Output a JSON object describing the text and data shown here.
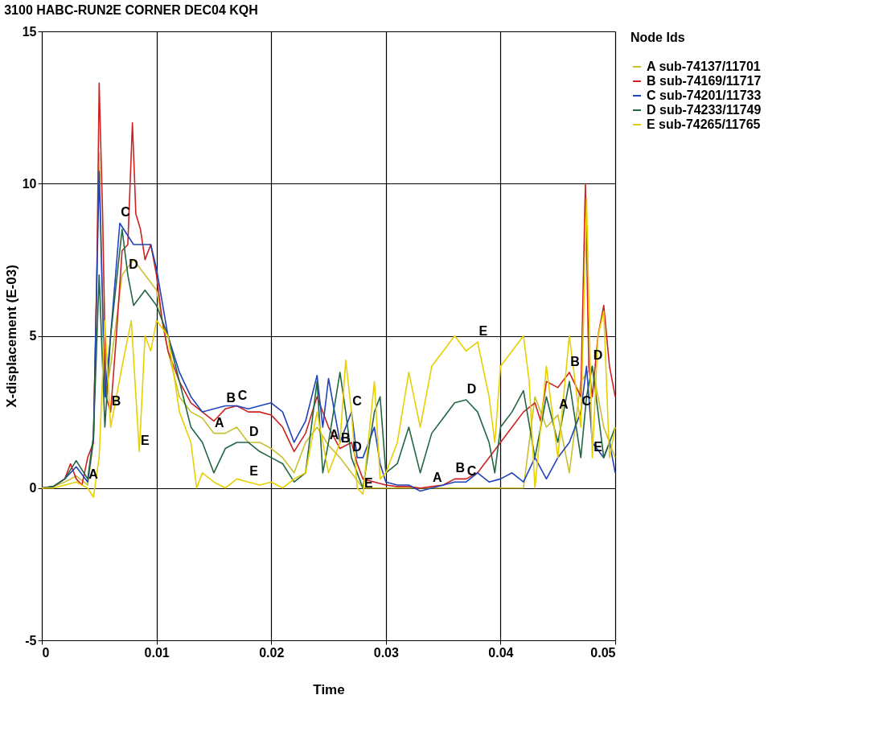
{
  "chart_data": {
    "type": "line",
    "title": "3100 HABC-RUN2E CORNER DEC04 KQH",
    "xlabel": "Time",
    "ylabel": "X-displacement (E-03)",
    "legend_title": "Node Ids",
    "legend": "right",
    "grid": true,
    "marker": "none",
    "line_style": "solid",
    "xlim": [
      0,
      0.05
    ],
    "xticks": [
      0,
      0.01,
      0.02,
      0.03,
      0.04,
      0.05
    ],
    "ylim": [
      -5,
      15
    ],
    "yticks": [
      -5,
      0,
      5,
      10,
      15
    ],
    "series": [
      {
        "name": "A sub-74137/11701",
        "color": "#c8c030",
        "x": [
          0,
          0.001,
          0.002,
          0.003,
          0.004,
          0.0045,
          0.005,
          0.0055,
          0.006,
          0.007,
          0.008,
          0.009,
          0.01,
          0.011,
          0.012,
          0.013,
          0.014,
          0.015,
          0.016,
          0.017,
          0.018,
          0.019,
          0.02,
          0.021,
          0.022,
          0.023,
          0.024,
          0.025,
          0.026,
          0.027,
          0.028,
          0.03,
          0.032,
          0.034,
          0.036,
          0.038,
          0.04,
          0.042,
          0.043,
          0.044,
          0.045,
          0.046,
          0.047,
          0.048,
          0.049,
          0.05
        ],
        "values": [
          0,
          0.05,
          0.2,
          0.4,
          0.1,
          1.5,
          11,
          3,
          4,
          7,
          7.5,
          7,
          6.5,
          4.5,
          3,
          2.5,
          2.3,
          1.8,
          1.8,
          2.0,
          1.5,
          1.5,
          1.3,
          1.0,
          0.5,
          1.5,
          2.0,
          1.4,
          1.0,
          0.5,
          0.0,
          0.0,
          0.0,
          0.0,
          0.0,
          0.0,
          0.0,
          0.0,
          3.0,
          2.0,
          2.4,
          0.5,
          3.5,
          4.0,
          2.0,
          1.0
        ]
      },
      {
        "name": "B sub-74169/11717",
        "color": "#cc2222",
        "x": [
          0,
          0.001,
          0.002,
          0.0025,
          0.003,
          0.0035,
          0.004,
          0.0045,
          0.0048,
          0.005,
          0.0053,
          0.0056,
          0.006,
          0.0065,
          0.007,
          0.0075,
          0.0079,
          0.0082,
          0.0086,
          0.009,
          0.0095,
          0.01,
          0.0105,
          0.011,
          0.012,
          0.013,
          0.014,
          0.015,
          0.016,
          0.017,
          0.018,
          0.019,
          0.02,
          0.021,
          0.022,
          0.023,
          0.024,
          0.025,
          0.026,
          0.027,
          0.0275,
          0.028,
          0.029,
          0.03,
          0.031,
          0.032,
          0.033,
          0.034,
          0.035,
          0.036,
          0.037,
          0.038,
          0.039,
          0.04,
          0.041,
          0.042,
          0.043,
          0.0435,
          0.044,
          0.045,
          0.046,
          0.047,
          0.0474,
          0.0477,
          0.048,
          0.0485,
          0.049,
          0.0495,
          0.05
        ],
        "values": [
          0,
          0.05,
          0.3,
          0.8,
          0.3,
          0.1,
          1.0,
          1.5,
          7,
          13.3,
          9,
          3,
          2.5,
          5,
          7.8,
          8,
          12,
          9,
          8.5,
          7.5,
          8,
          7,
          5.5,
          4.5,
          3.5,
          2.8,
          2.5,
          2.2,
          2.6,
          2.7,
          2.5,
          2.5,
          2.4,
          2.0,
          1.2,
          1.8,
          3.0,
          2.0,
          1.3,
          1.5,
          0.8,
          0.3,
          0.2,
          0.1,
          0.05,
          0.05,
          0.0,
          0.05,
          0.1,
          0.3,
          0.3,
          0.5,
          1.0,
          1.5,
          2.0,
          2.5,
          2.8,
          2.2,
          3.5,
          3.3,
          3.8,
          3.0,
          10,
          4,
          3,
          5,
          6,
          4,
          3
        ]
      },
      {
        "name": "C sub-74201/11733",
        "color": "#2244bb",
        "x": [
          0,
          0.001,
          0.002,
          0.003,
          0.004,
          0.0045,
          0.005,
          0.0055,
          0.006,
          0.0068,
          0.008,
          0.009,
          0.0095,
          0.01,
          0.011,
          0.012,
          0.013,
          0.014,
          0.015,
          0.016,
          0.017,
          0.018,
          0.019,
          0.02,
          0.021,
          0.022,
          0.023,
          0.024,
          0.0245,
          0.025,
          0.026,
          0.027,
          0.0275,
          0.028,
          0.029,
          0.0295,
          0.03,
          0.031,
          0.032,
          0.033,
          0.034,
          0.035,
          0.036,
          0.037,
          0.038,
          0.039,
          0.04,
          0.041,
          0.042,
          0.043,
          0.044,
          0.045,
          0.046,
          0.047,
          0.0475,
          0.048,
          0.049,
          0.0495,
          0.05
        ],
        "values": [
          0,
          0.05,
          0.3,
          0.7,
          0.2,
          1.6,
          10.4,
          3,
          5,
          8.7,
          8,
          8,
          8,
          7.2,
          5,
          3.8,
          3,
          2.5,
          2.6,
          2.7,
          2.7,
          2.6,
          2.7,
          2.8,
          2.5,
          1.5,
          2.2,
          3.7,
          2.0,
          3.6,
          1.5,
          2.5,
          1.0,
          1.0,
          2.0,
          0.8,
          0.2,
          0.1,
          0.1,
          -0.1,
          0.0,
          0.1,
          0.2,
          0.2,
          0.5,
          0.2,
          0.3,
          0.5,
          0.2,
          1.0,
          0.3,
          1.0,
          1.5,
          2.5,
          4.0,
          1.5,
          1.0,
          1.5,
          0.5
        ]
      },
      {
        "name": "D sub-74233/11749",
        "color": "#226644",
        "x": [
          0,
          0.001,
          0.002,
          0.003,
          0.004,
          0.0045,
          0.005,
          0.0055,
          0.006,
          0.007,
          0.0075,
          0.008,
          0.009,
          0.01,
          0.011,
          0.012,
          0.013,
          0.014,
          0.015,
          0.016,
          0.017,
          0.018,
          0.019,
          0.02,
          0.021,
          0.022,
          0.023,
          0.024,
          0.0245,
          0.025,
          0.026,
          0.0265,
          0.027,
          0.028,
          0.029,
          0.0295,
          0.03,
          0.031,
          0.032,
          0.033,
          0.034,
          0.035,
          0.036,
          0.037,
          0.038,
          0.039,
          0.0395,
          0.04,
          0.041,
          0.042,
          0.043,
          0.044,
          0.045,
          0.046,
          0.047,
          0.0475,
          0.048,
          0.049,
          0.05
        ],
        "values": [
          0,
          0.05,
          0.3,
          0.9,
          0.3,
          1.7,
          7,
          2,
          5,
          8.5,
          7,
          6,
          6.5,
          6,
          5,
          3.5,
          2.0,
          1.5,
          0.5,
          1.3,
          1.5,
          1.5,
          1.2,
          1.0,
          0.8,
          0.2,
          0.5,
          3.5,
          0.5,
          1.5,
          3.8,
          2.5,
          1.0,
          0.0,
          2.5,
          3.0,
          0.5,
          0.8,
          2.0,
          0.5,
          1.8,
          2.3,
          2.8,
          2.9,
          2.5,
          1.5,
          0.5,
          2.0,
          2.5,
          3.2,
          1.0,
          3.0,
          1.5,
          3.5,
          1.0,
          3.0,
          4.0,
          1.0,
          2.0
        ]
      },
      {
        "name": "E sub-74265/11765",
        "color": "#e8d000",
        "x": [
          0,
          0.001,
          0.002,
          0.003,
          0.004,
          0.0045,
          0.005,
          0.0055,
          0.006,
          0.007,
          0.0078,
          0.0085,
          0.009,
          0.0095,
          0.01,
          0.011,
          0.012,
          0.013,
          0.0135,
          0.014,
          0.015,
          0.016,
          0.017,
          0.018,
          0.019,
          0.02,
          0.021,
          0.022,
          0.023,
          0.024,
          0.025,
          0.026,
          0.0265,
          0.027,
          0.0275,
          0.028,
          0.029,
          0.0295,
          0.03,
          0.031,
          0.032,
          0.033,
          0.034,
          0.035,
          0.036,
          0.037,
          0.038,
          0.039,
          0.0395,
          0.04,
          0.041,
          0.042,
          0.0425,
          0.043,
          0.044,
          0.045,
          0.046,
          0.047,
          0.0475,
          0.048,
          0.0485,
          0.049,
          0.0495,
          0.05
        ],
        "values": [
          0,
          0.0,
          0.1,
          0.2,
          0.0,
          -0.3,
          1,
          5.5,
          2,
          4,
          5.5,
          1.2,
          5,
          4.5,
          5.5,
          5,
          2.5,
          1.5,
          0.0,
          0.5,
          0.2,
          0.0,
          0.3,
          0.2,
          0.1,
          0.2,
          0.0,
          0.3,
          0.5,
          2.5,
          0.5,
          1.5,
          4.2,
          2.5,
          0.0,
          -0.2,
          3.5,
          0.3,
          0.5,
          1.5,
          3.8,
          2.0,
          4.0,
          4.5,
          5.0,
          4.5,
          4.8,
          3.0,
          1.5,
          4.0,
          4.5,
          5.0,
          3.5,
          0.0,
          4.0,
          1.0,
          5.0,
          2.0,
          9.5,
          1.0,
          5.0,
          5.8,
          1.0,
          2.0
        ]
      }
    ],
    "annotations": [
      {
        "text": "A",
        "x": 0.004,
        "y": 0.1
      },
      {
        "text": "B",
        "x": 0.006,
        "y": 2.5
      },
      {
        "text": "C",
        "x": 0.0068,
        "y": 8.7
      },
      {
        "text": "D",
        "x": 0.0075,
        "y": 7
      },
      {
        "text": "E",
        "x": 0.0085,
        "y": 1.2
      },
      {
        "text": "A",
        "x": 0.015,
        "y": 1.8
      },
      {
        "text": "B",
        "x": 0.016,
        "y": 2.6
      },
      {
        "text": "C",
        "x": 0.017,
        "y": 2.7
      },
      {
        "text": "D",
        "x": 0.018,
        "y": 1.5
      },
      {
        "text": "E",
        "x": 0.018,
        "y": 0.2
      },
      {
        "text": "A",
        "x": 0.025,
        "y": 1.4
      },
      {
        "text": "B",
        "x": 0.026,
        "y": 1.3
      },
      {
        "text": "C",
        "x": 0.027,
        "y": 2.5
      },
      {
        "text": "D",
        "x": 0.027,
        "y": 1.0
      },
      {
        "text": "E",
        "x": 0.028,
        "y": -0.2
      },
      {
        "text": "A",
        "x": 0.034,
        "y": 0.0
      },
      {
        "text": "B",
        "x": 0.036,
        "y": 0.3
      },
      {
        "text": "C",
        "x": 0.037,
        "y": 0.2
      },
      {
        "text": "D",
        "x": 0.037,
        "y": 2.9
      },
      {
        "text": "E",
        "x": 0.038,
        "y": 4.8
      },
      {
        "text": "A",
        "x": 0.045,
        "y": 2.4
      },
      {
        "text": "B",
        "x": 0.046,
        "y": 3.8
      },
      {
        "text": "C",
        "x": 0.047,
        "y": 2.5
      },
      {
        "text": "D",
        "x": 0.048,
        "y": 4.0
      },
      {
        "text": "E",
        "x": 0.048,
        "y": 1.0
      }
    ]
  }
}
